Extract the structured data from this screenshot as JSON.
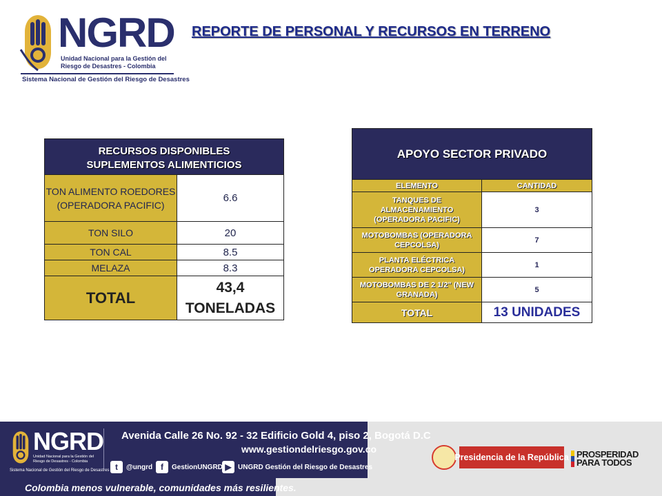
{
  "header": {
    "logo": {
      "wordmark": "NGRD",
      "line1": "Unidad Nacional para la Gestión del",
      "line2": "Riesgo de Desastres - Colombia",
      "tagline": "Sistema Nacional de Gestión del Riesgo de Desastres"
    },
    "title": "REPORTE DE PERSONAL Y RECURSOS EN TERRENO"
  },
  "left_table": {
    "header_line1": "RECURSOS DISPONIBLES",
    "header_line2": "SUPLEMENTOS ALIMENTICIOS",
    "rows": [
      {
        "label": "TON ALIMENTO ROEDORES (OPERADORA PACIFIC)",
        "value": "6.6"
      },
      {
        "label": "TON SILO",
        "value": "20"
      },
      {
        "label": "TON CAL",
        "value": "8.5"
      },
      {
        "label": "MELAZA",
        "value": "8.3"
      }
    ],
    "total_label": "TOTAL",
    "total_value_line1": "43,4",
    "total_value_line2": "TONELADAS"
  },
  "right_table": {
    "header": "APOYO SECTOR PRIVADO",
    "col_element": "ELEMENTO",
    "col_quantity": "CANTIDAD",
    "rows": [
      {
        "label": "TANQUES DE ALMACENAMIENTO (OPERADORA PACIFIC)",
        "value": "3"
      },
      {
        "label": "MOTOBOMBAS (OPERADORA CEPCOLSA)",
        "value": "7"
      },
      {
        "label": "PLANTA ELÉCTRICA OPERADORA CEPCOLSA)",
        "value": "1"
      },
      {
        "label": "MOTOBOMBAS DE 2 1/2\" (NEW GRANADA)",
        "value": "5"
      }
    ],
    "total_label": "TOTAL",
    "total_value": "13 UNIDADES"
  },
  "footer": {
    "logo_wordmark": "NGRD",
    "logo_line": "Unidad Nacional para la Gestión del Riesgo de Desastres - Colombia",
    "logo_tagline": "Sistema Nacional de Gestión del Riesgo de Desastres",
    "address": "Avenida Calle 26 No. 92 - 32 Edificio Gold 4, piso 2, Bogotá D.C",
    "website": "www.gestiondelriesgo.gov.co",
    "twitter": "@ungrd",
    "facebook": "GestionUNGRD",
    "youtube": "UNGRD Gestión del Riesgo de Desastres",
    "slogan": "Colombia menos vulnerable, comunidades más resilientes.",
    "presidencia": "Presidencia de la República",
    "prosperidad_line1": "PROSPERIDAD",
    "prosperidad_line2": "PARA TODOS"
  },
  "colors": {
    "navy": "#2a2a5c",
    "gold": "#d4b639",
    "title_blue": "#1d2a8a",
    "presidencia_red": "#c8312b"
  }
}
